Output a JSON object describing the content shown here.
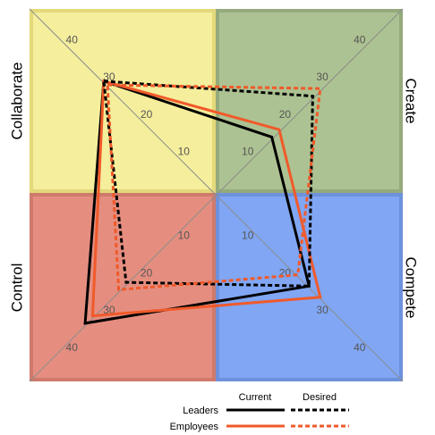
{
  "chart_data": {
    "type": "radar",
    "quadrants": [
      {
        "name": "Collaborate",
        "color": "#f5ee9c",
        "border": "#e3d87a"
      },
      {
        "name": "Create",
        "color": "#adc292",
        "border": "#95aa7c"
      },
      {
        "name": "Control",
        "color": "#e58e80",
        "border": "#cf7a6c"
      },
      {
        "name": "Compete",
        "color": "#80a6f4",
        "border": "#6e91dc"
      }
    ],
    "axis_max": 50,
    "tick_values": [
      10,
      20,
      30,
      40
    ],
    "tick_labels": [
      "10",
      "20",
      "30",
      "40"
    ],
    "series": [
      {
        "name": "Leaders",
        "type": "Current",
        "color": "#000000",
        "dashed": false,
        "values": {
          "Collaborate": 30,
          "Create": 15,
          "Compete": 25,
          "Control": 35
        }
      },
      {
        "name": "Employees",
        "type": "Current",
        "color": "#f05a2a",
        "dashed": false,
        "values": {
          "Collaborate": 30,
          "Create": 17,
          "Compete": 28,
          "Control": 33
        }
      },
      {
        "name": "Leaders",
        "type": "Desired",
        "color": "#000000",
        "dashed": true,
        "values": {
          "Collaborate": 30,
          "Create": 26,
          "Compete": 25,
          "Control": 24
        }
      },
      {
        "name": "Employees",
        "type": "Desired",
        "color": "#f05a2a",
        "dashed": true,
        "values": {
          "Collaborate": 29,
          "Create": 28,
          "Compete": 22,
          "Control": 26
        }
      }
    ],
    "legend": {
      "columns": [
        "Current",
        "Desired"
      ],
      "rows": [
        "Leaders",
        "Employees"
      ],
      "placement": "bottom-right"
    }
  }
}
